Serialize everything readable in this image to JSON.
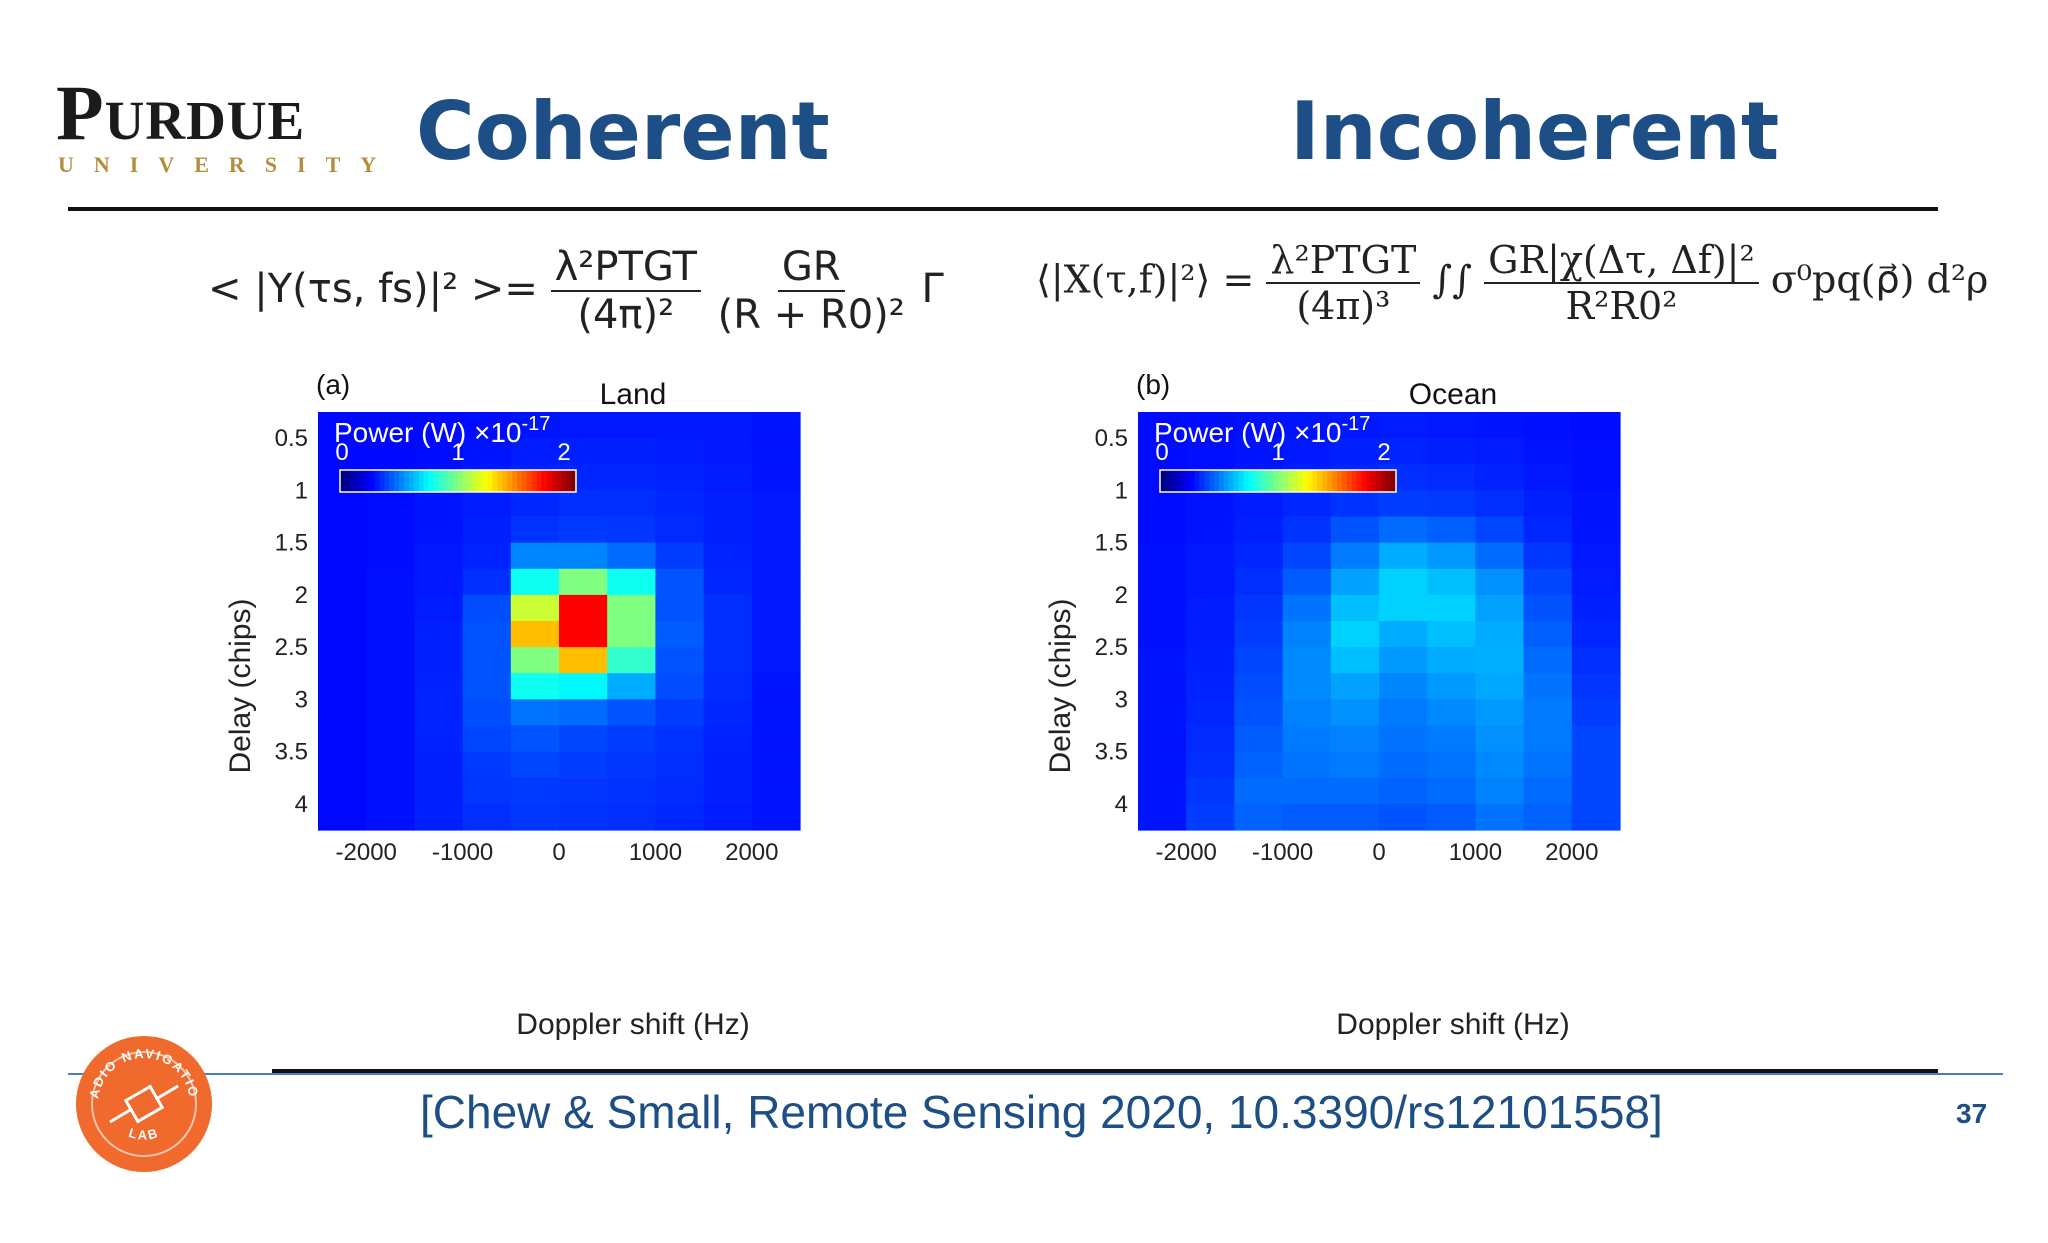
{
  "logo": {
    "word": "Purdue",
    "sub": "UNIVERSITY"
  },
  "headings": {
    "left": "Coherent",
    "right": "Incoherent"
  },
  "equations": {
    "left": {
      "lhs": "< |Y(τs, fs)|² >=",
      "frac1_num": "λ²PTGT",
      "frac1_den": "(4π)²",
      "frac2_num": "GR",
      "frac2_den": "(R + R0)²",
      "tail": "Γ"
    },
    "right": {
      "lhs": "⟨|X(τ,f)|²⟩ =",
      "frac1_num": "λ²PTGT",
      "frac1_den": "(4π)³",
      "integral": "∫∫",
      "frac2_num": "GR|χ(Δτ, Δf)|²",
      "frac2_den": "R²R0²",
      "tail": "σ⁰pq(ρ⃗) d²ρ"
    }
  },
  "colors": {
    "brand_blue": "#1d4e86",
    "gold": "#b58e3c",
    "lab_orange": "#f06a2e"
  },
  "chart_data": [
    {
      "type": "heatmap",
      "panel": "(a)",
      "title": "Land",
      "xlabel": "Doppler shift (Hz)",
      "ylabel": "Delay (chips)",
      "xticks": [
        -2000,
        -1000,
        0,
        1000,
        2000
      ],
      "yticks": [
        0.5,
        1,
        1.5,
        2,
        2.5,
        3,
        3.5,
        4
      ],
      "x_range": [
        -2500,
        2500
      ],
      "y_range": [
        0.25,
        4.25
      ],
      "colorbar": {
        "label": "Power (W) ×10",
        "exponent": "-17",
        "ticks": [
          0,
          1,
          2
        ],
        "range": [
          0,
          2
        ]
      },
      "cell_dx": 500,
      "cell_dy": 0.25,
      "values": [
        [
          0.02,
          0.02,
          0.02,
          0.03,
          0.05,
          0.06,
          0.06,
          0.06,
          0.06,
          0.05
        ],
        [
          0.02,
          0.02,
          0.03,
          0.05,
          0.07,
          0.08,
          0.08,
          0.07,
          0.06,
          0.05
        ],
        [
          0.02,
          0.03,
          0.04,
          0.06,
          0.09,
          0.1,
          0.1,
          0.09,
          0.07,
          0.05
        ],
        [
          0.02,
          0.03,
          0.05,
          0.07,
          0.1,
          0.12,
          0.12,
          0.1,
          0.08,
          0.06
        ],
        [
          0.02,
          0.03,
          0.05,
          0.08,
          0.13,
          0.15,
          0.14,
          0.11,
          0.08,
          0.06
        ],
        [
          0.02,
          0.03,
          0.06,
          0.09,
          0.35,
          0.35,
          0.28,
          0.16,
          0.09,
          0.06
        ],
        [
          0.02,
          0.04,
          0.06,
          0.12,
          0.7,
          1.0,
          0.7,
          0.22,
          0.1,
          0.06
        ],
        [
          0.02,
          0.04,
          0.07,
          0.2,
          1.2,
          2.0,
          1.0,
          0.22,
          0.12,
          0.06
        ],
        [
          0.02,
          0.04,
          0.08,
          0.22,
          1.5,
          2.0,
          1.0,
          0.24,
          0.12,
          0.06
        ],
        [
          0.02,
          0.04,
          0.08,
          0.22,
          1.0,
          1.5,
          0.8,
          0.22,
          0.12,
          0.06
        ],
        [
          0.02,
          0.04,
          0.09,
          0.22,
          0.7,
          0.65,
          0.45,
          0.2,
          0.11,
          0.05
        ],
        [
          0.02,
          0.04,
          0.09,
          0.2,
          0.3,
          0.28,
          0.22,
          0.16,
          0.1,
          0.05
        ],
        [
          0.02,
          0.04,
          0.09,
          0.18,
          0.22,
          0.18,
          0.16,
          0.13,
          0.09,
          0.05
        ],
        [
          0.02,
          0.04,
          0.08,
          0.15,
          0.18,
          0.16,
          0.14,
          0.12,
          0.08,
          0.05
        ],
        [
          0.02,
          0.04,
          0.08,
          0.14,
          0.15,
          0.14,
          0.13,
          0.11,
          0.08,
          0.05
        ],
        [
          0.02,
          0.04,
          0.08,
          0.12,
          0.14,
          0.13,
          0.12,
          0.1,
          0.07,
          0.05
        ]
      ]
    },
    {
      "type": "heatmap",
      "panel": "(b)",
      "title": "Ocean",
      "xlabel": "Doppler shift (Hz)",
      "ylabel": "Delay (chips)",
      "xticks": [
        -2000,
        -1000,
        0,
        1000,
        2000
      ],
      "yticks": [
        0.5,
        1,
        1.5,
        2,
        2.5,
        3,
        3.5,
        4
      ],
      "x_range": [
        -2500,
        2500
      ],
      "y_range": [
        0.25,
        4.25
      ],
      "colorbar": {
        "label": "Power (W) ×10",
        "exponent": "-17",
        "ticks": [
          0,
          1,
          2
        ],
        "range": [
          0,
          2
        ]
      },
      "cell_dx": 500,
      "cell_dy": 0.25,
      "values": [
        [
          0.03,
          0.03,
          0.04,
          0.05,
          0.06,
          0.07,
          0.06,
          0.05,
          0.04,
          0.03
        ],
        [
          0.03,
          0.04,
          0.05,
          0.06,
          0.08,
          0.09,
          0.08,
          0.07,
          0.05,
          0.04
        ],
        [
          0.03,
          0.04,
          0.06,
          0.08,
          0.1,
          0.12,
          0.11,
          0.09,
          0.06,
          0.04
        ],
        [
          0.03,
          0.05,
          0.07,
          0.1,
          0.13,
          0.16,
          0.15,
          0.12,
          0.08,
          0.05
        ],
        [
          0.03,
          0.05,
          0.08,
          0.13,
          0.22,
          0.28,
          0.25,
          0.18,
          0.1,
          0.05
        ],
        [
          0.04,
          0.06,
          0.1,
          0.18,
          0.32,
          0.45,
          0.4,
          0.28,
          0.14,
          0.06
        ],
        [
          0.04,
          0.06,
          0.12,
          0.24,
          0.42,
          0.55,
          0.5,
          0.38,
          0.18,
          0.07
        ],
        [
          0.04,
          0.07,
          0.14,
          0.3,
          0.5,
          0.55,
          0.55,
          0.42,
          0.22,
          0.08
        ],
        [
          0.04,
          0.07,
          0.16,
          0.34,
          0.55,
          0.45,
          0.5,
          0.45,
          0.25,
          0.1
        ],
        [
          0.05,
          0.08,
          0.18,
          0.36,
          0.5,
          0.4,
          0.45,
          0.46,
          0.28,
          0.12
        ],
        [
          0.05,
          0.09,
          0.2,
          0.36,
          0.42,
          0.35,
          0.4,
          0.44,
          0.3,
          0.14
        ],
        [
          0.05,
          0.1,
          0.22,
          0.34,
          0.38,
          0.32,
          0.36,
          0.4,
          0.32,
          0.16
        ],
        [
          0.05,
          0.11,
          0.24,
          0.32,
          0.34,
          0.3,
          0.32,
          0.38,
          0.32,
          0.18
        ],
        [
          0.05,
          0.12,
          0.26,
          0.3,
          0.32,
          0.28,
          0.3,
          0.36,
          0.3,
          0.18
        ],
        [
          0.05,
          0.14,
          0.28,
          0.28,
          0.28,
          0.26,
          0.28,
          0.34,
          0.28,
          0.18
        ],
        [
          0.05,
          0.16,
          0.26,
          0.24,
          0.24,
          0.22,
          0.24,
          0.3,
          0.26,
          0.18
        ]
      ]
    }
  ],
  "citation": "[Chew & Small, Remote Sensing 2020, 10.3390/rs12101558]",
  "page_number": "37",
  "lab_logo": {
    "top_text": "RADIO NAVIGATION",
    "bottom_text": "LAB"
  }
}
